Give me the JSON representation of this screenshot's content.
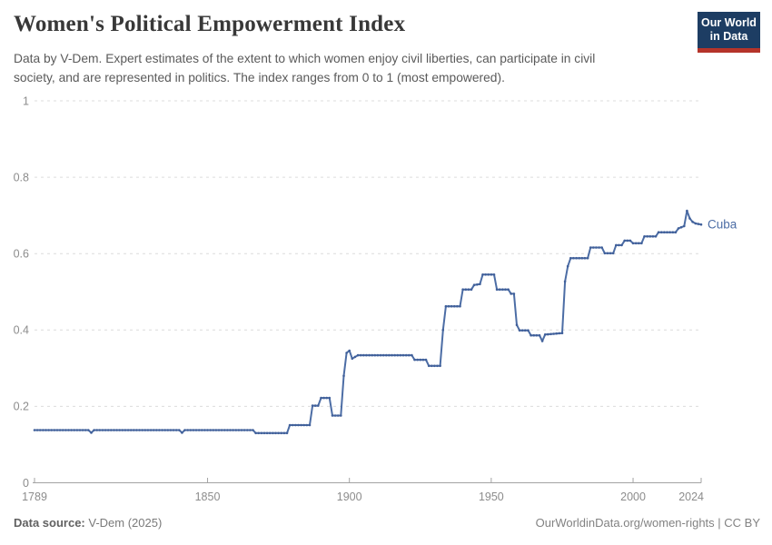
{
  "header": {
    "title": "Women's Political Empowerment Index",
    "subtitle_lines": [
      "Data by V-Dem. Expert estimates of the extent to which women enjoy civil liberties, can participate in civil",
      "society, and are represented in politics. The index ranges from 0 to 1 (most empowered)."
    ],
    "logo": {
      "line1": "Our World",
      "line2": "in Data",
      "bg_color": "#1d3d63",
      "bar_color": "#b5342a"
    }
  },
  "chart_data": {
    "type": "line",
    "title": "Women's Political Empowerment Index",
    "xlim": [
      1789,
      2024
    ],
    "ylim": [
      0,
      1
    ],
    "x_ticks": [
      1789,
      1850,
      1900,
      1950,
      2000,
      2024
    ],
    "y_ticks": [
      0,
      0.2,
      0.4,
      0.6,
      0.8,
      1
    ],
    "grid": "horizontal-dashed",
    "legend_position": "end-of-line-label",
    "axis_label_color": "#8c8c8c",
    "grid_color": "#dcdcdc",
    "axis_color": "#a3a3a3",
    "series": [
      {
        "name": "Cuba",
        "color": "#4c6da5",
        "marker_color": "#41609a",
        "points": [
          [
            1789,
            0.138
          ],
          [
            1808,
            0.138
          ],
          [
            1809,
            0.131
          ],
          [
            1810,
            0.138
          ],
          [
            1840,
            0.138
          ],
          [
            1841,
            0.131
          ],
          [
            1842,
            0.138
          ],
          [
            1866,
            0.138
          ],
          [
            1867,
            0.13
          ],
          [
            1878,
            0.13
          ],
          [
            1879,
            0.151
          ],
          [
            1886,
            0.151
          ],
          [
            1887,
            0.202
          ],
          [
            1889,
            0.202
          ],
          [
            1890,
            0.222
          ],
          [
            1893,
            0.222
          ],
          [
            1894,
            0.176
          ],
          [
            1897,
            0.176
          ],
          [
            1898,
            0.28
          ],
          [
            1899,
            0.34
          ],
          [
            1900,
            0.346
          ],
          [
            1901,
            0.325
          ],
          [
            1903,
            0.334
          ],
          [
            1922,
            0.334
          ],
          [
            1923,
            0.322
          ],
          [
            1927,
            0.322
          ],
          [
            1928,
            0.306
          ],
          [
            1932,
            0.306
          ],
          [
            1933,
            0.4
          ],
          [
            1934,
            0.462
          ],
          [
            1939,
            0.462
          ],
          [
            1940,
            0.506
          ],
          [
            1943,
            0.506
          ],
          [
            1944,
            0.518
          ],
          [
            1946,
            0.52
          ],
          [
            1947,
            0.545
          ],
          [
            1951,
            0.545
          ],
          [
            1952,
            0.506
          ],
          [
            1956,
            0.506
          ],
          [
            1957,
            0.495
          ],
          [
            1958,
            0.495
          ],
          [
            1959,
            0.413
          ],
          [
            1960,
            0.399
          ],
          [
            1963,
            0.399
          ],
          [
            1964,
            0.386
          ],
          [
            1967,
            0.386
          ],
          [
            1968,
            0.371
          ],
          [
            1969,
            0.388
          ],
          [
            1975,
            0.392
          ],
          [
            1976,
            0.527
          ],
          [
            1977,
            0.567
          ],
          [
            1978,
            0.588
          ],
          [
            1984,
            0.588
          ],
          [
            1985,
            0.616
          ],
          [
            1989,
            0.616
          ],
          [
            1990,
            0.601
          ],
          [
            1993,
            0.601
          ],
          [
            1994,
            0.622
          ],
          [
            1996,
            0.622
          ],
          [
            1997,
            0.634
          ],
          [
            1999,
            0.634
          ],
          [
            2000,
            0.627
          ],
          [
            2003,
            0.627
          ],
          [
            2004,
            0.645
          ],
          [
            2008,
            0.645
          ],
          [
            2009,
            0.656
          ],
          [
            2015,
            0.656
          ],
          [
            2016,
            0.666
          ],
          [
            2018,
            0.672
          ],
          [
            2019,
            0.712
          ],
          [
            2020,
            0.692
          ],
          [
            2021,
            0.683
          ],
          [
            2022,
            0.679
          ],
          [
            2024,
            0.676
          ]
        ]
      }
    ]
  },
  "footer": {
    "source_label": "Data source:",
    "source_value": "V-Dem (2025)",
    "credit": "OurWorldinData.org/women-rights | CC BY"
  }
}
